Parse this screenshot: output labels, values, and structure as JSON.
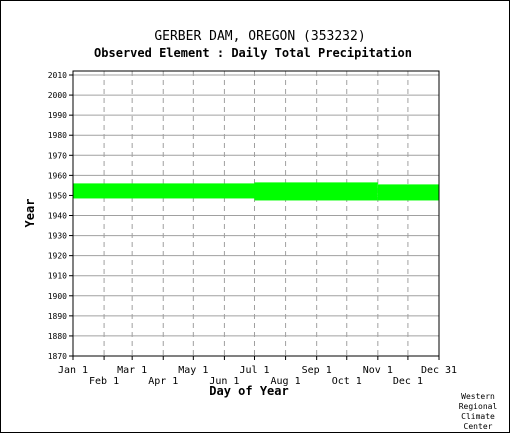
{
  "chart_data": {
    "type": "bar",
    "title": "GERBER DAM, OREGON   (353232)",
    "subtitle": "Observed Element : Daily Total Precipitation",
    "xlabel": "Day of Year",
    "ylabel": "Year",
    "ylim": [
      1870,
      2012
    ],
    "xlim": [
      1,
      366
    ],
    "y_ticks": [
      1870,
      1880,
      1890,
      1900,
      1910,
      1920,
      1930,
      1940,
      1950,
      1960,
      1970,
      1980,
      1990,
      2000,
      2010
    ],
    "x_ticks_upper": [
      {
        "label": "Jan 1",
        "day": 1
      },
      {
        "label": "Mar 1",
        "day": 60
      },
      {
        "label": "May 1",
        "day": 121
      },
      {
        "label": "Jul 1",
        "day": 182
      },
      {
        "label": "Sep 1",
        "day": 244
      },
      {
        "label": "Nov 1",
        "day": 305
      },
      {
        "label": "Dec 31",
        "day": 366
      }
    ],
    "x_ticks_lower": [
      {
        "label": "Feb 1",
        "day": 32
      },
      {
        "label": "Apr 1",
        "day": 91
      },
      {
        "label": "Jun 1",
        "day": 152
      },
      {
        "label": "Aug 1",
        "day": 213
      },
      {
        "label": "Oct 1",
        "day": 274
      },
      {
        "label": "Dec 1",
        "day": 335
      }
    ],
    "grid": true,
    "series_color": "#00ff00",
    "coverage": [
      {
        "start_day": 1,
        "end_day": 182,
        "year_start": 1948.5,
        "year_end": 1956
      },
      {
        "start_day": 182,
        "end_day": 305,
        "year_start": 1947.5,
        "year_end": 1956.5
      },
      {
        "start_day": 305,
        "end_day": 366,
        "year_start": 1947.5,
        "year_end": 1955.5
      }
    ]
  },
  "credit": [
    "Western",
    "Regional",
    "Climate",
    "Center"
  ]
}
